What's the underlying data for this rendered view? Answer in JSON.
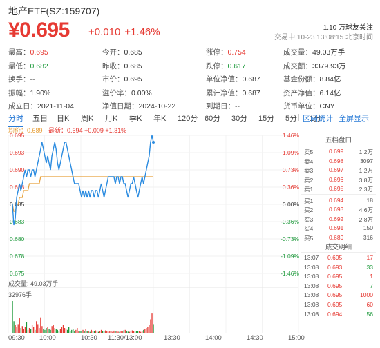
{
  "header": {
    "title": "地产ETF(SZ:159707)",
    "price": "¥0.695",
    "change": "+0.010",
    "change_pct": "+1.46%",
    "followers": "1.10 万球友关注",
    "trade_time": "交易中 10-23 13:08:15 北京时间"
  },
  "stats": [
    [
      {
        "label": "最高：",
        "value": "0.695",
        "color": "red"
      },
      {
        "label": "今开：",
        "value": "0.685",
        "color": "normal"
      },
      {
        "label": "涨停：",
        "value": "0.754",
        "color": "red"
      },
      {
        "label": "成交量：",
        "value": "49.03万手",
        "color": "normal"
      }
    ],
    [
      {
        "label": "最低：",
        "value": "0.682",
        "color": "green"
      },
      {
        "label": "昨收：",
        "value": "0.685",
        "color": "normal"
      },
      {
        "label": "跌停：",
        "value": "0.617",
        "color": "green"
      },
      {
        "label": "成交额：",
        "value": "3379.93万",
        "color": "normal"
      }
    ],
    [
      {
        "label": "换手：",
        "value": "--",
        "color": "normal"
      },
      {
        "label": "市价：",
        "value": "0.695",
        "color": "normal"
      },
      {
        "label": "单位净值：",
        "value": "0.687",
        "color": "normal"
      },
      {
        "label": "基金份额：",
        "value": "8.84亿",
        "color": "normal"
      }
    ],
    [
      {
        "label": "振幅：",
        "value": "1.90%",
        "color": "normal"
      },
      {
        "label": "溢价率：",
        "value": "0.00%",
        "color": "normal"
      },
      {
        "label": "累计净值：",
        "value": "0.687",
        "color": "normal"
      },
      {
        "label": "资产净值：",
        "value": "6.14亿",
        "color": "normal"
      }
    ],
    [
      {
        "label": "成立日：",
        "value": "2021-11-04",
        "color": "normal"
      },
      {
        "label": "净值日期：",
        "value": "2024-10-22",
        "color": "normal"
      },
      {
        "label": "到期日：",
        "value": "--",
        "color": "normal"
      },
      {
        "label": "货币单位：",
        "value": "CNY",
        "color": "normal"
      }
    ]
  ],
  "tabs": [
    "分时",
    "五日",
    "日K",
    "周K",
    "月K",
    "季K",
    "年K",
    "120分",
    "60分",
    "30分",
    "15分",
    "5分",
    "1分"
  ],
  "tabs_right": [
    "区间统计",
    "全屏显示"
  ],
  "legend": {
    "avg": "均价：0.689",
    "latest": "最新：0.694 +0.009 +1.31%"
  },
  "chart_data": {
    "type": "line",
    "y_ticks": [
      "0.695",
      "0.693",
      "0.690",
      "0.688",
      "0.685",
      "0.683",
      "0.680",
      "0.678",
      "0.675"
    ],
    "pct_ticks": [
      "1.46%",
      "1.09%",
      "0.73%",
      "0.36%",
      "0.00%",
      "-0.36%",
      "-0.73%",
      "-1.09%",
      "-1.46%"
    ],
    "x_ticks": [
      "09:30",
      "10:00",
      "10:30",
      "11:30/13:00",
      "13:30",
      "14:00",
      "14:30",
      "15:00"
    ],
    "ylim": [
      0.675,
      0.695
    ],
    "prev_close": 0.685,
    "volume_title": "成交量: 49.03万手",
    "volume_max": "32976手",
    "price": [
      0.685,
      0.682,
      0.683,
      0.686,
      0.687,
      0.688,
      0.687,
      0.688,
      0.689,
      0.69,
      0.689,
      0.69,
      0.69,
      0.689,
      0.69,
      0.69,
      0.689,
      0.69,
      0.691,
      0.692,
      0.693,
      0.694,
      0.693,
      0.692,
      0.691,
      0.692,
      0.691,
      0.69,
      0.692,
      0.693,
      0.694,
      0.693,
      0.691,
      0.69,
      0.691,
      0.692,
      0.693,
      0.694,
      0.694,
      0.693,
      0.692,
      0.691,
      0.69,
      0.689,
      0.688,
      0.688,
      0.688,
      0.688,
      0.687,
      0.686,
      0.687,
      0.686,
      0.687,
      0.686,
      0.687,
      0.686,
      0.687,
      0.687,
      0.686,
      0.687,
      0.687,
      0.686,
      0.687,
      0.688,
      0.687,
      0.686,
      0.687,
      0.688,
      0.689,
      0.689,
      0.689,
      0.689,
      0.689,
      0.688,
      0.689,
      0.689,
      0.688,
      0.689,
      0.689,
      0.688,
      0.688,
      0.687,
      0.686,
      0.687,
      0.688,
      0.688,
      0.689,
      0.688,
      0.687,
      0.686,
      0.687,
      0.688,
      0.689,
      0.688,
      0.689,
      0.69,
      0.691,
      0.692,
      0.694,
      0.695,
      0.694
    ],
    "avg": [
      0.685,
      0.684,
      0.684,
      0.685,
      0.685,
      0.686,
      0.686,
      0.686,
      0.687,
      0.687,
      0.687,
      0.687,
      0.688,
      0.688,
      0.688,
      0.688,
      0.688,
      0.688,
      0.688,
      0.688,
      0.689,
      0.689,
      0.689,
      0.689,
      0.689,
      0.689,
      0.689,
      0.689,
      0.689,
      0.689,
      0.689,
      0.689,
      0.689,
      0.689,
      0.689,
      0.689,
      0.689,
      0.689,
      0.689,
      0.689,
      0.689,
      0.689,
      0.689,
      0.689,
      0.689,
      0.689,
      0.689,
      0.689,
      0.689,
      0.689,
      0.689,
      0.689,
      0.689,
      0.689,
      0.689,
      0.689,
      0.689,
      0.689,
      0.689,
      0.689,
      0.689,
      0.689,
      0.689,
      0.689,
      0.689,
      0.689,
      0.689,
      0.689,
      0.689,
      0.689,
      0.689,
      0.689,
      0.689,
      0.689,
      0.689,
      0.689,
      0.689,
      0.689,
      0.689,
      0.689,
      0.689,
      0.689,
      0.689,
      0.689,
      0.689,
      0.689,
      0.689,
      0.689,
      0.689,
      0.689,
      0.689,
      0.689,
      0.689,
      0.689,
      0.689,
      0.689,
      0.689,
      0.689,
      0.689,
      0.689,
      0.689
    ],
    "volume": [
      32976,
      12000,
      8000,
      6000,
      9000,
      15000,
      5000,
      7000,
      4000,
      6000,
      11000,
      3000,
      5000,
      4000,
      8000,
      6000,
      3000,
      12000,
      9000,
      5000,
      16000,
      7000,
      4000,
      3000,
      5000,
      6000,
      4000,
      3000,
      7000,
      8000,
      5000,
      4000,
      3000,
      2000,
      4000,
      6000,
      8000,
      5000,
      4000,
      3000,
      6000,
      2000,
      3000,
      4000,
      2000,
      3000,
      5000,
      2000,
      1500,
      2000,
      3000,
      2000,
      4000,
      1500,
      2000,
      1000,
      3000,
      2000,
      1500,
      2500,
      2000,
      1000,
      2000,
      3000,
      1500,
      2000,
      2500,
      1800,
      1200,
      2000,
      1500,
      1000,
      2200,
      1800,
      1500,
      1200,
      1000,
      2000,
      1500,
      2500,
      3000,
      1800,
      1200,
      1000,
      2000,
      2500,
      1500,
      1200,
      1800,
      2000,
      1500,
      1000,
      2000,
      3000,
      4000,
      5000,
      6000,
      8000,
      14000,
      20000,
      9000
    ]
  },
  "book": {
    "title": "五档盘口",
    "asks": [
      {
        "label": "卖5",
        "price": "0.699",
        "vol": "1.2万"
      },
      {
        "label": "卖4",
        "price": "0.698",
        "vol": "3097"
      },
      {
        "label": "卖3",
        "price": "0.697",
        "vol": "1.2万"
      },
      {
        "label": "卖2",
        "price": "0.696",
        "vol": "3.8万"
      },
      {
        "label": "卖1",
        "price": "0.695",
        "vol": "2.3万"
      }
    ],
    "bids": [
      {
        "label": "买1",
        "price": "0.694",
        "vol": "18"
      },
      {
        "label": "买2",
        "price": "0.693",
        "vol": "4.6万"
      },
      {
        "label": "买3",
        "price": "0.692",
        "vol": "2.8万"
      },
      {
        "label": "买4",
        "price": "0.691",
        "vol": "150"
      },
      {
        "label": "买5",
        "price": "0.689",
        "vol": "316"
      }
    ]
  },
  "trades": {
    "title": "成交明细",
    "rows": [
      {
        "time": "13:07",
        "price": "0.695",
        "vol": "17",
        "dir": "buy"
      },
      {
        "time": "13:08",
        "price": "0.693",
        "vol": "33",
        "dir": "sell"
      },
      {
        "time": "13:08",
        "price": "0.695",
        "vol": "1",
        "dir": "buy"
      },
      {
        "time": "13:08",
        "price": "0.695",
        "vol": "7",
        "dir": "sell"
      },
      {
        "time": "13:08",
        "price": "0.695",
        "vol": "1000",
        "dir": "buy"
      },
      {
        "time": "13:08",
        "price": "0.695",
        "vol": "60",
        "dir": "buy"
      },
      {
        "time": "13:08",
        "price": "0.694",
        "vol": "56",
        "dir": "sell"
      }
    ]
  }
}
